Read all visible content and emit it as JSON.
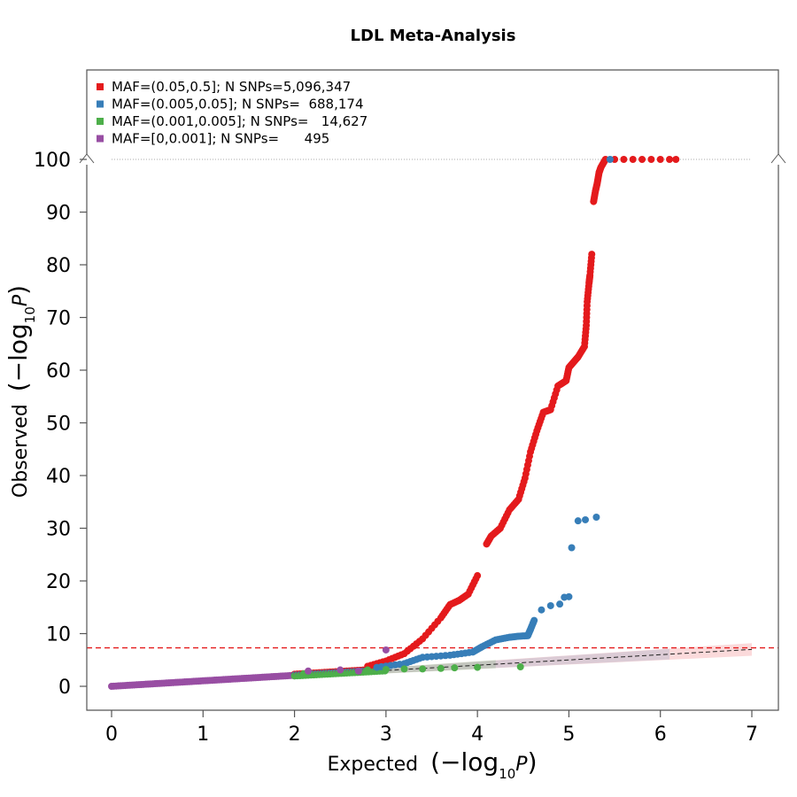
{
  "chart_data": {
    "type": "scatter",
    "title": "LDL Meta-Analysis",
    "xlabel_prefix": "Expected",
    "ylabel_prefix": "Observed",
    "axis_expr": {
      "open": "(−log",
      "sub": "10",
      "var": "P",
      "close": ")"
    },
    "xlim": [
      0,
      7
    ],
    "ylim": [
      0,
      100
    ],
    "x_ticks": [
      "0",
      "1",
      "2",
      "3",
      "4",
      "5",
      "6",
      "7"
    ],
    "y_ticks": [
      "0",
      "10",
      "20",
      "30",
      "40",
      "50",
      "60",
      "70",
      "80",
      "90",
      "100"
    ],
    "y_axis_break_at": 100,
    "significance_line": 7.3,
    "significance_color": "#e41a1c",
    "grid": false,
    "legend_placement": "top-left",
    "series": [
      {
        "name": "MAF=(0.05,0.5]; N SNPs=5,096,347",
        "color": "#e41a1c",
        "points": [
          [
            2.8,
            3.8
          ],
          [
            3.0,
            4.8
          ],
          [
            3.2,
            6.2
          ],
          [
            3.4,
            9.0
          ],
          [
            3.6,
            13.0
          ],
          [
            3.7,
            15.5
          ],
          [
            3.8,
            16.3
          ],
          [
            3.9,
            17.5
          ],
          [
            4.0,
            21.0
          ],
          [
            4.1,
            27.0
          ],
          [
            4.15,
            28.5
          ],
          [
            4.25,
            30.0
          ],
          [
            4.35,
            33.5
          ],
          [
            4.45,
            35.5
          ],
          [
            4.52,
            39.5
          ],
          [
            4.58,
            44.5
          ],
          [
            4.65,
            48.5
          ],
          [
            4.72,
            52.0
          ],
          [
            4.8,
            52.5
          ],
          [
            4.88,
            57.0
          ],
          [
            4.97,
            58.0
          ],
          [
            5.0,
            60.5
          ],
          [
            5.05,
            61.5
          ],
          [
            5.1,
            62.5
          ],
          [
            5.17,
            64.5
          ],
          [
            5.19,
            68.5
          ],
          [
            5.2,
            73.0
          ],
          [
            5.22,
            76.5
          ],
          [
            5.23,
            78.0
          ],
          [
            5.25,
            82.0
          ],
          [
            5.27,
            92.0
          ],
          [
            5.29,
            94.0
          ],
          [
            5.31,
            95.5
          ],
          [
            5.33,
            97.5
          ],
          [
            5.35,
            98.5
          ],
          [
            5.4,
            100
          ],
          [
            5.5,
            100
          ],
          [
            5.6,
            100
          ],
          [
            5.7,
            100
          ],
          [
            5.8,
            100
          ],
          [
            5.9,
            100
          ],
          [
            6.0,
            100
          ],
          [
            6.1,
            100
          ],
          [
            6.17,
            100
          ]
        ]
      },
      {
        "name": "MAF=(0.005,0.05]; N SNPs=  688,174",
        "color": "#377eb8",
        "points": [
          [
            2.9,
            3.6
          ],
          [
            3.2,
            4.3
          ],
          [
            3.4,
            5.5
          ],
          [
            3.7,
            5.9
          ],
          [
            3.95,
            6.5
          ],
          [
            4.05,
            7.5
          ],
          [
            4.2,
            8.8
          ],
          [
            4.35,
            9.3
          ],
          [
            4.45,
            9.5
          ],
          [
            4.55,
            9.6
          ],
          [
            4.58,
            10.8
          ],
          [
            4.62,
            12.5
          ],
          [
            4.7,
            14.5
          ],
          [
            4.8,
            15.3
          ],
          [
            4.9,
            15.6
          ],
          [
            4.95,
            16.9
          ],
          [
            5.0,
            17.0
          ],
          [
            5.03,
            26.3
          ],
          [
            5.1,
            31.4
          ],
          [
            5.18,
            31.6
          ],
          [
            5.3,
            32.1
          ],
          [
            5.45,
            100
          ]
        ]
      },
      {
        "name": "MAF=(0.001,0.005]; N SNPs=   14,627",
        "color": "#4daf4a",
        "points": [
          [
            2.1,
            2.4
          ],
          [
            2.5,
            2.8
          ],
          [
            2.8,
            3.1
          ],
          [
            3.0,
            3.2
          ],
          [
            3.2,
            3.3
          ],
          [
            3.4,
            3.3
          ],
          [
            3.6,
            3.4
          ],
          [
            3.75,
            3.5
          ],
          [
            4.0,
            3.6
          ],
          [
            4.47,
            3.7
          ]
        ]
      },
      {
        "name": "MAF=[0,0.001]; N SNPs=      495",
        "color": "#984ea3",
        "points": [
          [
            2.15,
            2.9
          ],
          [
            2.5,
            3.1
          ],
          [
            2.7,
            2.9
          ],
          [
            3.0,
            6.9
          ]
        ]
      }
    ]
  }
}
